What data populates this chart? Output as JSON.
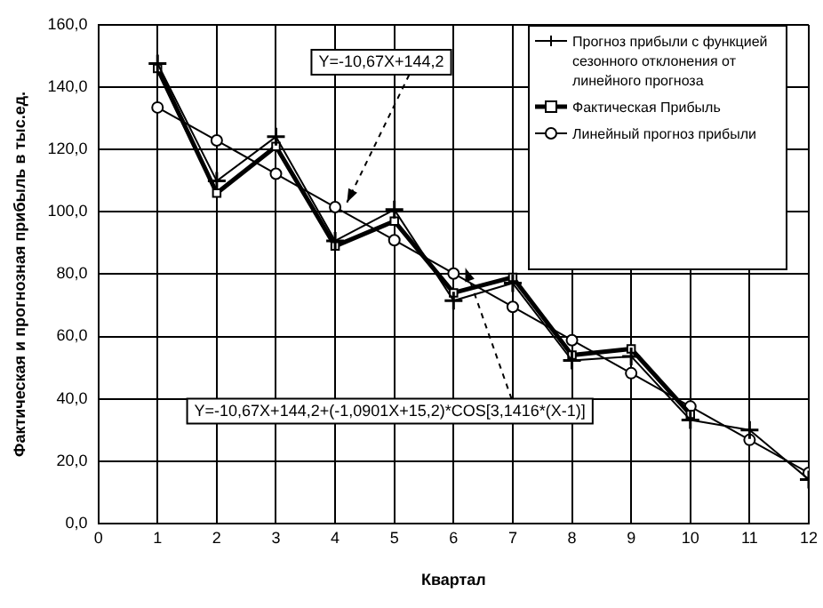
{
  "chart_data": {
    "type": "line",
    "xlabel": "Квартал",
    "ylabel": "Фактическая и прогнозная прибыль в тыс.ед.",
    "x": [
      1,
      2,
      3,
      4,
      5,
      6,
      7,
      8,
      9,
      10,
      11,
      12
    ],
    "xlim": [
      0,
      12
    ],
    "xticks": [
      0,
      1,
      2,
      3,
      4,
      5,
      6,
      7,
      8,
      9,
      10,
      11,
      12
    ],
    "ylim": [
      0,
      160
    ],
    "yticks": [
      {
        "value": 0,
        "label": "0,0"
      },
      {
        "value": 20,
        "label": "20,0"
      },
      {
        "value": 40,
        "label": "40,0"
      },
      {
        "value": 60,
        "label": "60,0"
      },
      {
        "value": 80,
        "label": "80,0"
      },
      {
        "value": 100,
        "label": "100,0"
      },
      {
        "value": 120,
        "label": "120,0"
      },
      {
        "value": 140,
        "label": "140,0"
      },
      {
        "value": 160,
        "label": "160,0"
      }
    ],
    "grid": true,
    "legend": "top right",
    "line_style": "solid",
    "series": [
      {
        "name": "Прогноз прибыли с функцией сезонного отклонения от линейного прогноза",
        "color": "#000000",
        "marker": "cross",
        "values": [
          147.6,
          109.9,
          124.1,
          90.7,
          100.7,
          71.5,
          77.1,
          52.3,
          53.6,
          33.2,
          30.0,
          14.1
        ]
      },
      {
        "name": "Фактическая Прибыль",
        "color": "#000000",
        "marker": "square",
        "values": [
          146,
          106,
          121,
          89,
          97,
          74,
          79,
          54,
          56,
          35,
          null,
          null
        ]
      },
      {
        "name": "Линейный прогноз прибыли",
        "color": "#000000",
        "marker": "circle",
        "values": [
          133.5,
          122.9,
          112.2,
          101.5,
          90.9,
          80.2,
          69.5,
          58.8,
          48.2,
          37.5,
          26.8,
          16.2
        ]
      }
    ],
    "annotations": [
      {
        "text": "Y=-10,67X+144,2",
        "x": 4.2,
        "y": 103
      },
      {
        "text": "Y=-10,67X+144,2+(-1,0901X+15,2)*COS[3,1416*(X-1)]",
        "x": 6.2,
        "y": 82
      }
    ]
  }
}
